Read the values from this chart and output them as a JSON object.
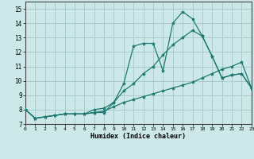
{
  "xlabel": "Humidex (Indice chaleur)",
  "background_color": "#cce8e8",
  "grid_color": "#aacccc",
  "line_color": "#1e7a70",
  "xlim": [
    0,
    23
  ],
  "ylim": [
    7,
    15.5
  ],
  "yticks": [
    7,
    8,
    9,
    10,
    11,
    12,
    13,
    14,
    15
  ],
  "xticks": [
    0,
    1,
    2,
    3,
    4,
    5,
    6,
    7,
    8,
    9,
    10,
    11,
    12,
    13,
    14,
    15,
    16,
    17,
    18,
    19,
    20,
    21,
    22,
    23
  ],
  "s1_x": [
    0,
    1,
    2,
    3,
    4,
    5,
    6,
    7,
    8,
    9,
    10,
    11,
    12,
    13,
    14,
    15,
    16,
    17,
    18,
    19,
    20,
    21,
    22,
    23
  ],
  "s1_y": [
    8.0,
    7.4,
    7.5,
    7.6,
    7.7,
    7.7,
    7.7,
    7.8,
    7.8,
    8.5,
    9.8,
    12.4,
    12.6,
    12.6,
    10.7,
    14.0,
    14.8,
    14.3,
    13.1,
    11.7,
    10.2,
    10.4,
    10.5,
    9.5
  ],
  "s2_x": [
    0,
    1,
    2,
    3,
    4,
    5,
    6,
    7,
    8,
    9,
    10,
    11,
    12,
    13,
    14,
    15,
    16,
    17,
    18,
    19,
    20,
    21,
    22,
    23
  ],
  "s2_y": [
    8.0,
    7.4,
    7.5,
    7.6,
    7.7,
    7.7,
    7.7,
    8.0,
    8.1,
    8.5,
    9.3,
    9.8,
    10.5,
    11.0,
    11.8,
    12.5,
    13.0,
    13.5,
    13.1,
    11.7,
    10.2,
    10.4,
    10.5,
    9.5
  ],
  "s3_x": [
    0,
    1,
    2,
    3,
    4,
    5,
    6,
    7,
    8,
    9,
    10,
    11,
    12,
    13,
    14,
    15,
    16,
    17,
    18,
    19,
    20,
    21,
    22,
    23
  ],
  "s3_y": [
    8.0,
    7.4,
    7.5,
    7.6,
    7.7,
    7.7,
    7.7,
    7.8,
    7.9,
    8.2,
    8.5,
    8.7,
    8.9,
    9.1,
    9.3,
    9.5,
    9.7,
    9.9,
    10.2,
    10.5,
    10.8,
    11.0,
    11.3,
    9.5
  ]
}
